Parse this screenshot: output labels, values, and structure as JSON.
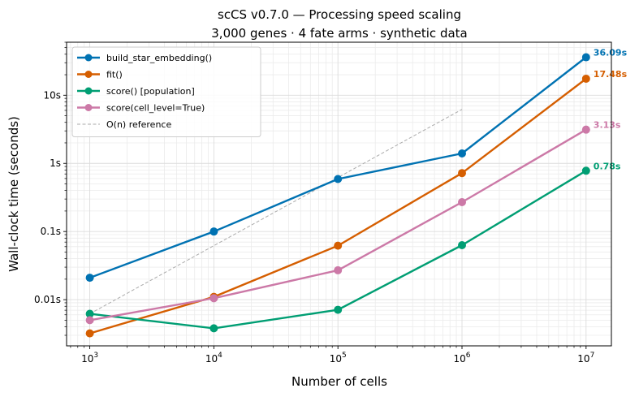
{
  "chart_data": {
    "type": "line",
    "title": "scCS v0.7.0 — Processing speed scaling",
    "subtitle": "3,000 genes · 4 fate arms · synthetic data",
    "xlabel": "Number of cells",
    "ylabel": "Wall-clock time (seconds)",
    "xscale": "log",
    "yscale": "log",
    "x": [
      1000,
      10000,
      100000,
      1000000,
      10000000
    ],
    "xticks": [
      {
        "value": 1000,
        "base": "10",
        "exp": "3"
      },
      {
        "value": 10000,
        "base": "10",
        "exp": "4"
      },
      {
        "value": 100000,
        "base": "10",
        "exp": "5"
      },
      {
        "value": 1000000,
        "base": "10",
        "exp": "6"
      },
      {
        "value": 10000000,
        "base": "10",
        "exp": "7"
      }
    ],
    "yticks": [
      {
        "value": 0.01,
        "label": "0.01s"
      },
      {
        "value": 0.1,
        "label": "0.1s"
      },
      {
        "value": 1,
        "label": "1s"
      },
      {
        "value": 10,
        "label": "10s"
      }
    ],
    "xlim": [
      650,
      16000000
    ],
    "ylim": [
      0.0021,
      60
    ],
    "grid": true,
    "legend_position": "top-left",
    "series": [
      {
        "name": "build_star_embedding()",
        "color": "#0072b2",
        "values": [
          0.021,
          0.1,
          0.59,
          1.4,
          36.09
        ],
        "end_label": "36.09s"
      },
      {
        "name": "fit()",
        "color": "#d55e00",
        "values": [
          0.0032,
          0.011,
          0.062,
          0.72,
          17.48
        ],
        "end_label": "17.48s"
      },
      {
        "name": "score()  [population]",
        "color": "#009e73",
        "values": [
          0.0062,
          0.0038,
          0.0071,
          0.063,
          0.78
        ],
        "end_label": "0.78s"
      },
      {
        "name": "score(cell_level=True)",
        "color": "#cc79a7",
        "values": [
          0.005,
          0.0105,
          0.027,
          0.27,
          3.13
        ],
        "end_label": "3.13s"
      }
    ],
    "reference": {
      "name": "O(n) reference",
      "color": "#aaaaaa",
      "x": [
        1000,
        1000000
      ],
      "y": [
        0.0062,
        6.2
      ]
    }
  }
}
